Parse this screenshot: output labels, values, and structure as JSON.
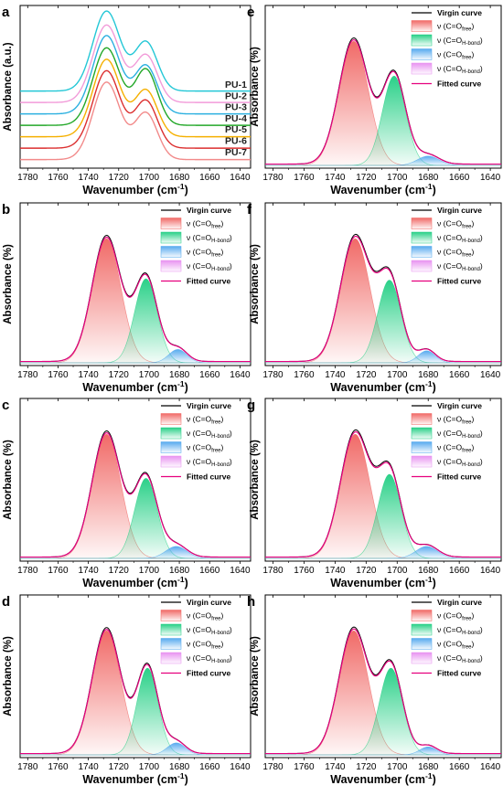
{
  "colors": {
    "free": "#f0625f",
    "hbond": "#1fce82",
    "free2": "#4fa6ee",
    "hbond2": "#e78ef0",
    "fitted": "#e6007e",
    "virgin": "#000000"
  },
  "chart_data": [
    {
      "panel": "a",
      "type": "line",
      "xlabel": "Wavenumber (cm⁻¹)",
      "ylabel": "Absorbance (a.u.)",
      "xlim": [
        1785,
        1633
      ],
      "xticks": [
        1780,
        1760,
        1740,
        1720,
        1700,
        1680,
        1660,
        1640
      ],
      "series": [
        {
          "name": "PU-1",
          "color": "#23c7d6",
          "peak1_height": 0.95,
          "peak2_height": 0.58
        },
        {
          "name": "PU-2",
          "color": "#f29bd9",
          "peak1_height": 0.92,
          "peak2_height": 0.56
        },
        {
          "name": "PU-3",
          "color": "#2bb0e0",
          "peak1_height": 0.93,
          "peak2_height": 0.57
        },
        {
          "name": "PU-4",
          "color": "#23a829",
          "peak1_height": 0.92,
          "peak2_height": 0.66
        },
        {
          "name": "PU-5",
          "color": "#f5b000",
          "peak1_height": 0.92,
          "peak2_height": 0.55
        },
        {
          "name": "PU-6",
          "color": "#dc2f2f",
          "peak1_height": 0.92,
          "peak2_height": 0.56
        },
        {
          "name": "PU-7",
          "color": "#f28a8a",
          "peak1_height": 0.92,
          "peak2_height": 0.55
        }
      ]
    },
    {
      "panel": "b",
      "type": "area",
      "xlabel": "Wavenumber (cm⁻¹)",
      "ylabel": "Absorbance (%)",
      "xlim": [
        1785,
        1633
      ],
      "xticks": [
        1780,
        1760,
        1740,
        1720,
        1700,
        1680,
        1660,
        1640
      ],
      "peaks": [
        {
          "key": "free",
          "center": 1728,
          "height": 0.93,
          "width": 9.5
        },
        {
          "key": "hbond",
          "center": 1702,
          "height": 0.63,
          "width": 7.5
        },
        {
          "key": "free2",
          "center": 1681,
          "height": 0.1,
          "width": 6
        },
        {
          "key": "hbond2",
          "center": 1700,
          "height": 0.0,
          "width": 6
        }
      ]
    },
    {
      "panel": "c",
      "type": "area",
      "xlabel": "Wavenumber (cm⁻¹)",
      "ylabel": "Absorbance (%)",
      "xlim": [
        1785,
        1633
      ],
      "xticks": [
        1780,
        1760,
        1740,
        1720,
        1700,
        1680,
        1660,
        1640
      ],
      "peaks": [
        {
          "key": "free",
          "center": 1728,
          "height": 0.93,
          "width": 9.5
        },
        {
          "key": "hbond",
          "center": 1702,
          "height": 0.6,
          "width": 7.5
        },
        {
          "key": "free2",
          "center": 1682,
          "height": 0.09,
          "width": 7
        },
        {
          "key": "hbond2",
          "center": 1700,
          "height": 0.0,
          "width": 6
        }
      ]
    },
    {
      "panel": "d",
      "type": "area",
      "xlabel": "Wavenumber (cm⁻¹)",
      "ylabel": "Absorbance (%)",
      "xlim": [
        1785,
        1633
      ],
      "xticks": [
        1780,
        1760,
        1740,
        1720,
        1700,
        1680,
        1660,
        1640
      ],
      "peaks": [
        {
          "key": "free",
          "center": 1728,
          "height": 0.93,
          "width": 9.5
        },
        {
          "key": "hbond",
          "center": 1701,
          "height": 0.65,
          "width": 7
        },
        {
          "key": "free2",
          "center": 1682,
          "height": 0.09,
          "width": 6
        },
        {
          "key": "hbond2",
          "center": 1700,
          "height": 0.0,
          "width": 6
        }
      ]
    },
    {
      "panel": "e",
      "type": "area",
      "xlabel": "Wavenumber (cm⁻¹)",
      "ylabel": "Absorbance (%)",
      "xlim": [
        1785,
        1633
      ],
      "xticks": [
        1780,
        1760,
        1740,
        1720,
        1700,
        1680,
        1660,
        1640
      ],
      "peaks": [
        {
          "key": "free",
          "center": 1728,
          "height": 0.93,
          "width": 9.5
        },
        {
          "key": "hbond",
          "center": 1702,
          "height": 0.67,
          "width": 7.5
        },
        {
          "key": "free2",
          "center": 1680,
          "height": 0.07,
          "width": 7
        },
        {
          "key": "hbond2",
          "center": 1700,
          "height": 0.0,
          "width": 6
        }
      ]
    },
    {
      "panel": "f",
      "type": "area",
      "xlabel": "Wavenumber (cm⁻¹)",
      "ylabel": "Absorbance (%)",
      "xlim": [
        1785,
        1633
      ],
      "xticks": [
        1780,
        1760,
        1740,
        1720,
        1700,
        1680,
        1660,
        1640
      ],
      "peaks": [
        {
          "key": "free",
          "center": 1727,
          "height": 0.93,
          "width": 9.5
        },
        {
          "key": "hbond",
          "center": 1705,
          "height": 0.62,
          "width": 7.5
        },
        {
          "key": "free2",
          "center": 1681,
          "height": 0.09,
          "width": 5.5
        },
        {
          "key": "hbond2",
          "center": 1700,
          "height": 0.0,
          "width": 6
        }
      ]
    },
    {
      "panel": "g",
      "type": "area",
      "xlabel": "Wavenumber (cm⁻¹)",
      "ylabel": "Absorbance (%)",
      "xlim": [
        1785,
        1633
      ],
      "xticks": [
        1780,
        1760,
        1740,
        1720,
        1700,
        1680,
        1660,
        1640
      ],
      "peaks": [
        {
          "key": "free",
          "center": 1727,
          "height": 0.93,
          "width": 9.5
        },
        {
          "key": "hbond",
          "center": 1705,
          "height": 0.63,
          "width": 7.5
        },
        {
          "key": "free2",
          "center": 1681,
          "height": 0.09,
          "width": 7
        },
        {
          "key": "hbond2",
          "center": 1700,
          "height": 0.0,
          "width": 6
        }
      ]
    },
    {
      "panel": "h",
      "type": "area",
      "xlabel": "Wavenumber (cm⁻¹)",
      "ylabel": "Absorbance (%)",
      "xlim": [
        1785,
        1633
      ],
      "xticks": [
        1780,
        1760,
        1740,
        1720,
        1700,
        1680,
        1660,
        1640
      ],
      "peaks": [
        {
          "key": "free",
          "center": 1728,
          "height": 0.93,
          "width": 9.5
        },
        {
          "key": "hbond",
          "center": 1704,
          "height": 0.65,
          "width": 7.5
        },
        {
          "key": "free2",
          "center": 1680,
          "height": 0.06,
          "width": 5.5
        },
        {
          "key": "hbond2",
          "center": 1700,
          "height": 0.0,
          "width": 6
        }
      ]
    }
  ],
  "legend": {
    "virgin": "Virgin curve",
    "nu_prefix": "ν (C=O",
    "suffix": ")",
    "free_sub": "free",
    "hbond_sub": "H-bond",
    "fitted": "Fitted curve"
  }
}
